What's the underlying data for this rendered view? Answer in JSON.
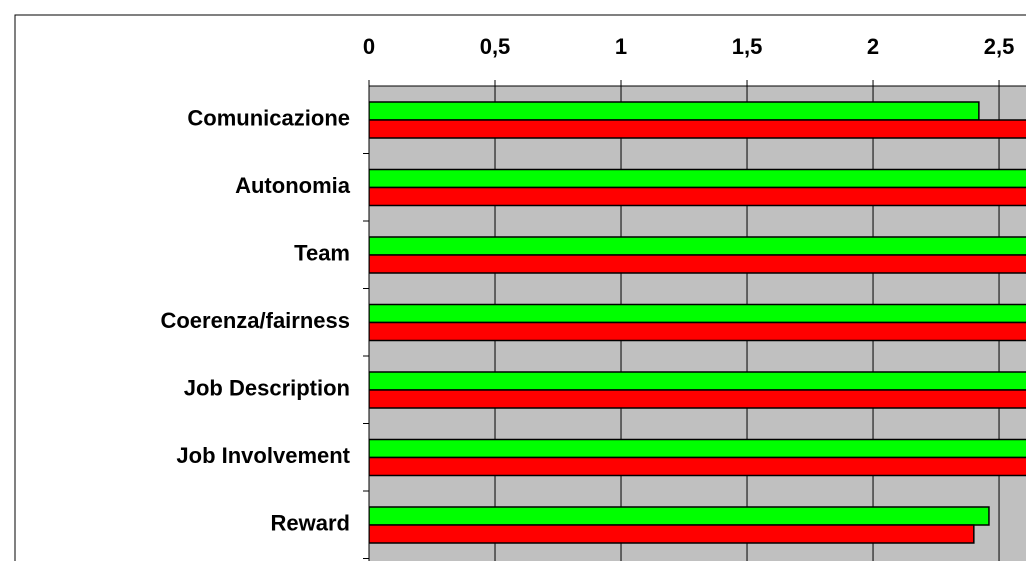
{
  "chart_data": {
    "type": "barh",
    "categories": [
      "Comunicazione",
      "Autonomia",
      "Team",
      "Coerenza/fairness",
      "Job Description",
      "Job Involvement",
      "Reward"
    ],
    "series": [
      {
        "color": "#00ff00",
        "values": [
          2.42,
          2.7,
          2.7,
          2.7,
          2.7,
          2.7,
          2.46
        ]
      },
      {
        "color": "#ff0000",
        "values": [
          2.7,
          2.7,
          2.7,
          2.7,
          2.7,
          2.7,
          2.4
        ]
      }
    ],
    "xlim": [
      0,
      2.607
    ],
    "xticks": [
      0,
      {
        "value": 0.5,
        "label": "0,5"
      },
      1,
      {
        "value": 1.5,
        "label": "1,5"
      },
      2,
      {
        "value": 2.5,
        "label": "2,5"
      }
    ],
    "grid": true
  }
}
